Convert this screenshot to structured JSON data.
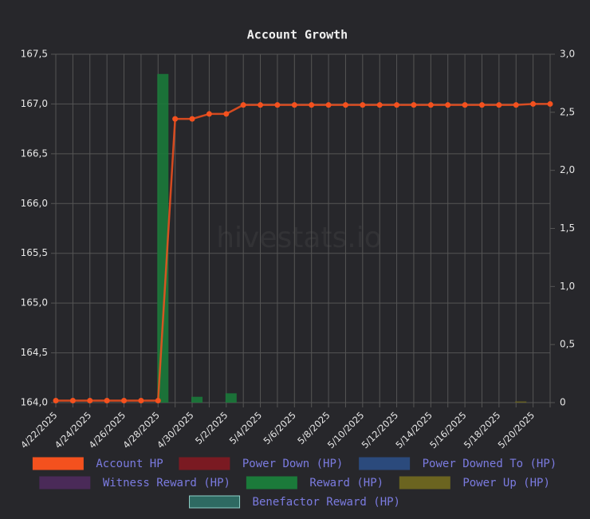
{
  "chart_data": {
    "type": "bar",
    "title": "Account Growth",
    "watermark": "hivestats.io",
    "categories": [
      "4/22/2025",
      null,
      "4/24/2025",
      null,
      "4/26/2025",
      null,
      "4/28/2025",
      null,
      "4/30/2025",
      null,
      "5/2/2025",
      null,
      "5/4/2025",
      null,
      "5/6/2025",
      null,
      "5/8/2025",
      null,
      "5/10/2025",
      null,
      "5/12/2025",
      null,
      "5/14/2025",
      null,
      "5/16/2025",
      null,
      "5/18/2025",
      null,
      "5/20/2025",
      null
    ],
    "ylim": [
      164.0,
      167.5
    ],
    "yticks": [
      {
        "value": 164.0,
        "label": "164,0"
      },
      {
        "value": 164.5,
        "label": "164,5"
      },
      {
        "value": 165.0,
        "label": "165,0"
      },
      {
        "value": 165.5,
        "label": "165,5"
      },
      {
        "value": 166.0,
        "label": "166,0"
      },
      {
        "value": 166.5,
        "label": "166,5"
      },
      {
        "value": 167.0,
        "label": "167,0"
      },
      {
        "value": 167.5,
        "label": "167,5"
      }
    ],
    "y2lim": [
      0,
      3.0
    ],
    "y2ticks": [
      0,
      {
        "value": 0.5,
        "label": "0,5"
      },
      {
        "value": 1.0,
        "label": "1,0"
      },
      {
        "value": 1.5,
        "label": "1,5"
      },
      {
        "value": 2.0,
        "label": "2,0"
      },
      {
        "value": 2.5,
        "label": "2,5"
      },
      {
        "value": 3.0,
        "label": "3,0"
      }
    ],
    "grid": true,
    "series": [
      {
        "name": "Account HP",
        "type": "line",
        "color": "#f4511e",
        "values": [
          164.02,
          164.02,
          164.02,
          164.02,
          164.02,
          164.02,
          164.02,
          166.85,
          166.85,
          166.9,
          166.9,
          166.99,
          166.99,
          166.99,
          166.99,
          166.99,
          166.99,
          166.99,
          166.99,
          166.99,
          166.99,
          166.99,
          166.99,
          166.99,
          166.99,
          166.99,
          166.99,
          166.99,
          167.0,
          167.0
        ]
      },
      {
        "name": "Power Down (HP)",
        "type": "bar",
        "axis": "y2",
        "color": "#7a1a22",
        "values": [
          null,
          null,
          null,
          null,
          null,
          null,
          null,
          null,
          null,
          null,
          null,
          null,
          null,
          null,
          null,
          null,
          null,
          null,
          null,
          null,
          null,
          null,
          null,
          null,
          null,
          null,
          null,
          null,
          null,
          null
        ]
      },
      {
        "name": "Power Downed To (HP)",
        "type": "bar",
        "axis": "y2",
        "color": "#2b4a7c",
        "values": [
          null,
          null,
          null,
          null,
          null,
          null,
          null,
          null,
          null,
          null,
          null,
          null,
          null,
          null,
          null,
          null,
          null,
          null,
          null,
          null,
          null,
          null,
          null,
          null,
          null,
          null,
          null,
          null,
          null,
          null
        ]
      },
      {
        "name": "Witness Reward (HP)",
        "type": "bar",
        "axis": "y2",
        "color": "#4a2a58",
        "values": [
          null,
          null,
          null,
          null,
          null,
          null,
          null,
          null,
          null,
          null,
          null,
          null,
          null,
          null,
          null,
          null,
          null,
          null,
          null,
          null,
          null,
          null,
          null,
          null,
          null,
          null,
          null,
          null,
          null,
          null
        ]
      },
      {
        "name": "Reward (HP)",
        "type": "bar",
        "axis": "y2",
        "color": "#1b7a3a",
        "values": [
          null,
          null,
          null,
          null,
          null,
          null,
          2.83,
          null,
          0.05,
          null,
          0.08,
          null,
          null,
          null,
          null,
          null,
          null,
          null,
          null,
          null,
          null,
          null,
          null,
          null,
          null,
          null,
          null,
          null,
          null,
          null
        ]
      },
      {
        "name": "Power Up (HP)",
        "type": "bar",
        "axis": "y2",
        "color": "#6b6420",
        "values": [
          null,
          null,
          null,
          null,
          null,
          null,
          null,
          null,
          null,
          null,
          null,
          null,
          null,
          null,
          null,
          null,
          null,
          null,
          null,
          null,
          null,
          null,
          null,
          null,
          null,
          null,
          null,
          0.01,
          null,
          null
        ]
      },
      {
        "name": "Benefactor Reward (HP)",
        "type": "bar",
        "axis": "y2",
        "color": "#2e6a62",
        "values": [
          null,
          null,
          null,
          null,
          null,
          null,
          null,
          null,
          null,
          null,
          null,
          null,
          null,
          null,
          null,
          null,
          null,
          null,
          null,
          null,
          null,
          null,
          null,
          null,
          null,
          null,
          null,
          null,
          null,
          null
        ]
      }
    ]
  }
}
